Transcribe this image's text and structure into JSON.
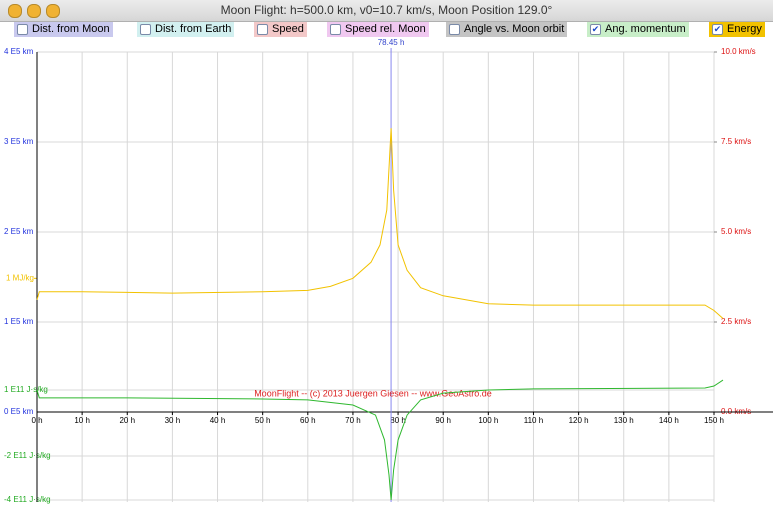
{
  "window": {
    "title": "Moon Flight: h=500.0 km, v0=10.7 km/s,  Moon Position 129.0°"
  },
  "options": [
    {
      "label": "Dist. from Moon",
      "checked": false,
      "color": "#c9c9ee"
    },
    {
      "label": "Dist. from Earth",
      "checked": false,
      "color": "#d2f0f0"
    },
    {
      "label": "Speed",
      "checked": false,
      "color": "#f3c8c8"
    },
    {
      "label": "Speed rel. Moon",
      "checked": false,
      "color": "#f0c8f0"
    },
    {
      "label": "Angle vs. Moon orbit",
      "checked": false,
      "color": "#c4c4c4"
    },
    {
      "label": "Ang. momentum",
      "checked": true,
      "color": "#c8eec8"
    },
    {
      "label": "Energy",
      "checked": true,
      "color": "#f2c200"
    }
  ],
  "chart_data": {
    "type": "line",
    "xlim": [
      0,
      153
    ],
    "xticks": [
      {
        "value": 0,
        "label": "0 h"
      },
      {
        "value": 10,
        "label": "10 h"
      },
      {
        "value": 20,
        "label": "20 h"
      },
      {
        "value": 30,
        "label": "30 h"
      },
      {
        "value": 40,
        "label": "40 h"
      },
      {
        "value": 50,
        "label": "50 h"
      },
      {
        "value": 60,
        "label": "60 h"
      },
      {
        "value": 70,
        "label": "70 h"
      },
      {
        "value": 80,
        "label": "80 h"
      },
      {
        "value": 90,
        "label": "90 h"
      },
      {
        "value": 100,
        "label": "100 h"
      },
      {
        "value": 110,
        "label": "110 h"
      },
      {
        "value": 120,
        "label": "120 h"
      },
      {
        "value": 130,
        "label": "130 h"
      },
      {
        "value": 140,
        "label": "140 h"
      },
      {
        "value": 150,
        "label": "150 h"
      }
    ],
    "ylim": [
      -1,
      4
    ],
    "yticks": [
      {
        "value": 4,
        "label": "4 E5 km"
      },
      {
        "value": 3,
        "label": "3 E5 km"
      },
      {
        "value": 2,
        "label": "2 E5 km"
      },
      {
        "value": 1,
        "label": "1 E5 km"
      },
      {
        "value": 0,
        "label": "0 E5 km"
      }
    ],
    "y2lim": [
      -2.5,
      10
    ],
    "y2ticks": [
      {
        "value": 10,
        "label": "10.0 km/s"
      },
      {
        "value": 7.5,
        "label": "7.5 km/s"
      },
      {
        "value": 5,
        "label": "5.0 km/s"
      },
      {
        "value": 2.5,
        "label": "2.5 km/s"
      },
      {
        "value": 0,
        "label": "0.0 km/s"
      }
    ],
    "energy_lim": [
      -0.67,
      2.69
    ],
    "energy_ticks": [
      {
        "value": 1,
        "label": "1 MJ/kg"
      }
    ],
    "momentum_lim": [
      -4.09,
      16.36
    ],
    "momentum_ticks": [
      {
        "value": 1,
        "label": "1 E11 J·s/kg"
      },
      {
        "value": -2,
        "label": "-2 E11 J·s/kg"
      },
      {
        "value": -4,
        "label": "-4 E11 J·s/kg"
      }
    ],
    "marker": {
      "value": 78.45,
      "label": "78.45 h"
    },
    "credit": "MoonFlight  --  (c) 2013 Juergen Giesen  --  www.GeoAstro.de",
    "series": [
      {
        "name": "Energy",
        "color": "#f2c200",
        "axis": "energy",
        "x": [
          0,
          0.5,
          10,
          30,
          50,
          60,
          65,
          70,
          74,
          76,
          77.5,
          78.45,
          79,
          80,
          82,
          85,
          90,
          100,
          110,
          140,
          148,
          150,
          152
        ],
        "values": [
          0.84,
          0.9,
          0.9,
          0.89,
          0.9,
          0.91,
          0.94,
          1.0,
          1.12,
          1.25,
          1.51,
          2.12,
          1.66,
          1.25,
          1.06,
          0.93,
          0.87,
          0.81,
          0.8,
          0.8,
          0.8,
          0.76,
          0.7
        ]
      },
      {
        "name": "Ang. momentum",
        "color": "#2fb82f",
        "axis": "momentum",
        "x": [
          0,
          0.5,
          20,
          50,
          60,
          70,
          75,
          77,
          78,
          78.45,
          79,
          80,
          82,
          85,
          90,
          100,
          110,
          148,
          150,
          152
        ],
        "values": [
          1.0,
          0.64,
          0.64,
          0.59,
          0.55,
          0.32,
          -0.14,
          -1.27,
          -2.86,
          -4.0,
          -2.64,
          -1.27,
          -0.14,
          0.55,
          0.86,
          1.0,
          1.05,
          1.09,
          1.18,
          1.45
        ]
      }
    ]
  }
}
